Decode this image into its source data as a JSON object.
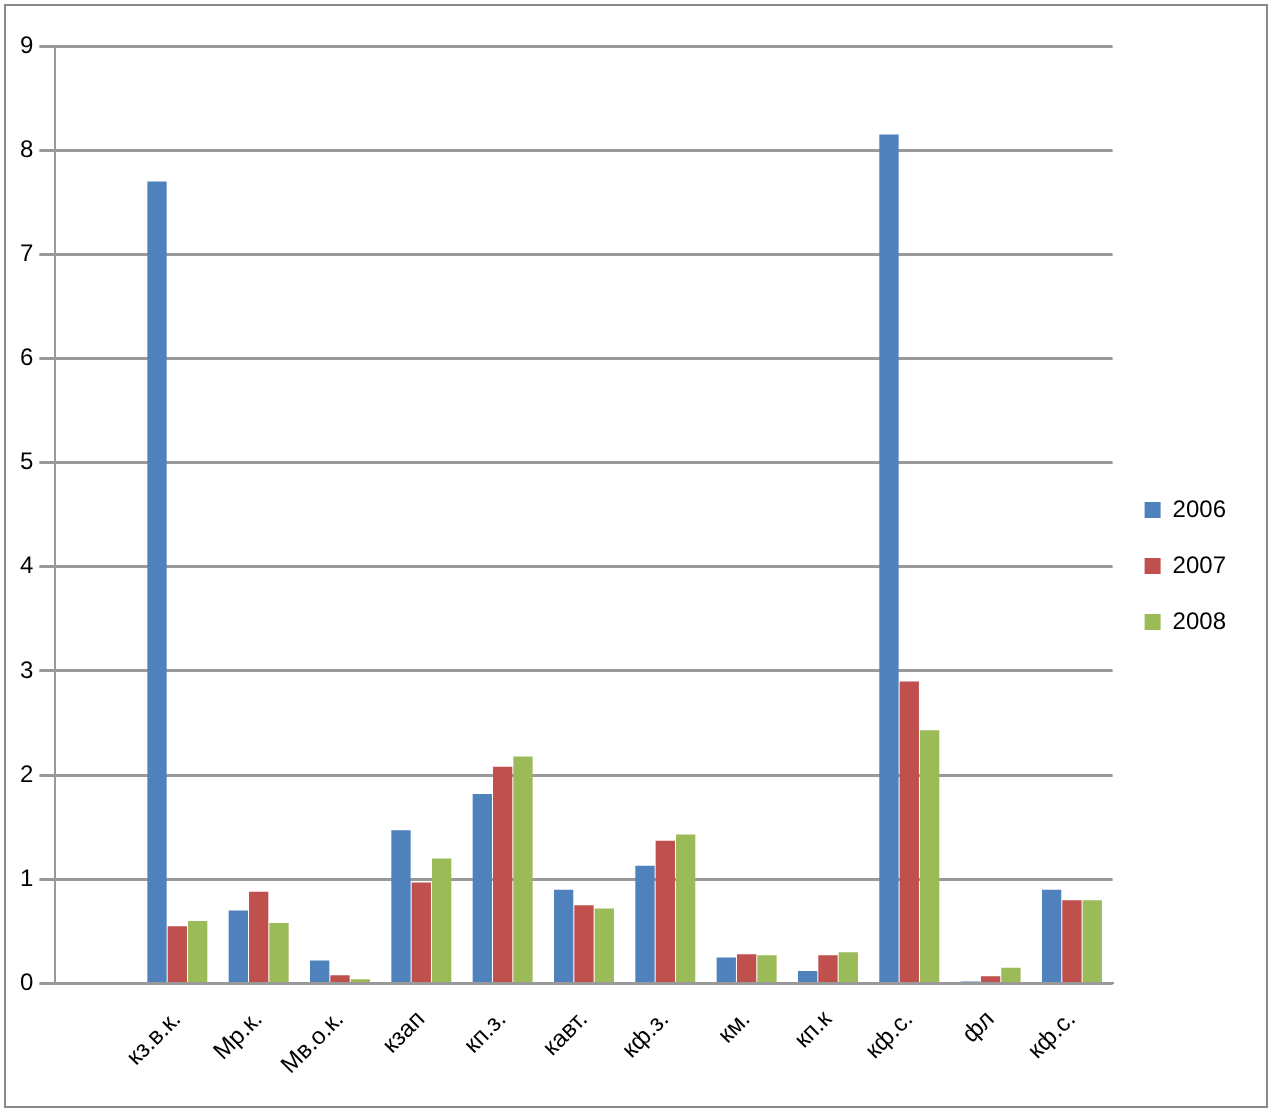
{
  "chart_data": {
    "type": "bar",
    "categories": [
      null,
      "кз.в.к.",
      "Мр.к.",
      "Мв.о.к.",
      "кзап",
      "кп.з.",
      "кавт.",
      "кф.з.",
      "км.",
      "кп.к",
      "кф.с.",
      "фл",
      "кф.с."
    ],
    "series": [
      {
        "name": "2006",
        "color": "#4f81bd",
        "values": [
          null,
          7.7,
          0.7,
          0.22,
          1.47,
          1.82,
          0.9,
          1.13,
          0.25,
          0.12,
          8.15,
          0.02,
          0.9
        ]
      },
      {
        "name": "2007",
        "color": "#c0504d",
        "values": [
          null,
          0.55,
          0.88,
          0.08,
          0.97,
          2.08,
          0.75,
          1.37,
          0.28,
          0.27,
          2.9,
          0.07,
          0.8
        ]
      },
      {
        "name": "2008",
        "color": "#9bbb59",
        "values": [
          null,
          0.6,
          0.58,
          0.04,
          1.2,
          2.18,
          0.72,
          1.43,
          0.27,
          0.3,
          2.43,
          0.15,
          0.8
        ]
      }
    ],
    "ylim": [
      0,
      9
    ],
    "yticks": [
      0,
      1,
      2,
      3,
      4,
      5,
      6,
      7,
      8,
      9
    ],
    "grid": "y",
    "legend": "right"
  }
}
